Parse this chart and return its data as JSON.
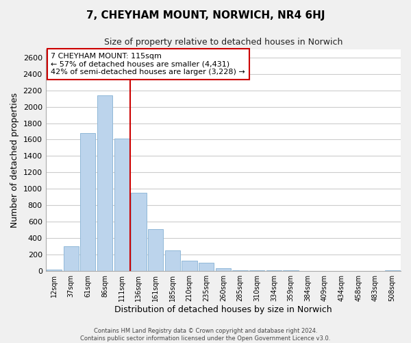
{
  "title": "7, CHEYHAM MOUNT, NORWICH, NR4 6HJ",
  "subtitle": "Size of property relative to detached houses in Norwich",
  "xlabel": "Distribution of detached houses by size in Norwich",
  "ylabel": "Number of detached properties",
  "bar_labels": [
    "12sqm",
    "37sqm",
    "61sqm",
    "86sqm",
    "111sqm",
    "136sqm",
    "161sqm",
    "185sqm",
    "210sqm",
    "235sqm",
    "260sqm",
    "285sqm",
    "310sqm",
    "334sqm",
    "359sqm",
    "384sqm",
    "409sqm",
    "434sqm",
    "458sqm",
    "483sqm",
    "508sqm"
  ],
  "bar_values": [
    15,
    295,
    1675,
    2140,
    1610,
    955,
    505,
    245,
    125,
    95,
    30,
    10,
    5,
    3,
    2,
    1,
    0,
    0,
    0,
    0,
    10
  ],
  "bar_color": "#bcd4ec",
  "bar_edge_color": "#90b8d8",
  "vline_color": "#cc0000",
  "annotation_title": "7 CHEYHAM MOUNT: 115sqm",
  "annotation_line1": "← 57% of detached houses are smaller (4,431)",
  "annotation_line2": "42% of semi-detached houses are larger (3,228) →",
  "annotation_box_color": "white",
  "annotation_box_edge": "#cc0000",
  "ylim": [
    0,
    2700
  ],
  "yticks": [
    0,
    200,
    400,
    600,
    800,
    1000,
    1200,
    1400,
    1600,
    1800,
    2000,
    2200,
    2400,
    2600
  ],
  "footer1": "Contains HM Land Registry data © Crown copyright and database right 2024.",
  "footer2": "Contains public sector information licensed under the Open Government Licence v3.0.",
  "bg_color": "#f0f0f0",
  "plot_bg_color": "#ffffff",
  "grid_color": "#cccccc"
}
